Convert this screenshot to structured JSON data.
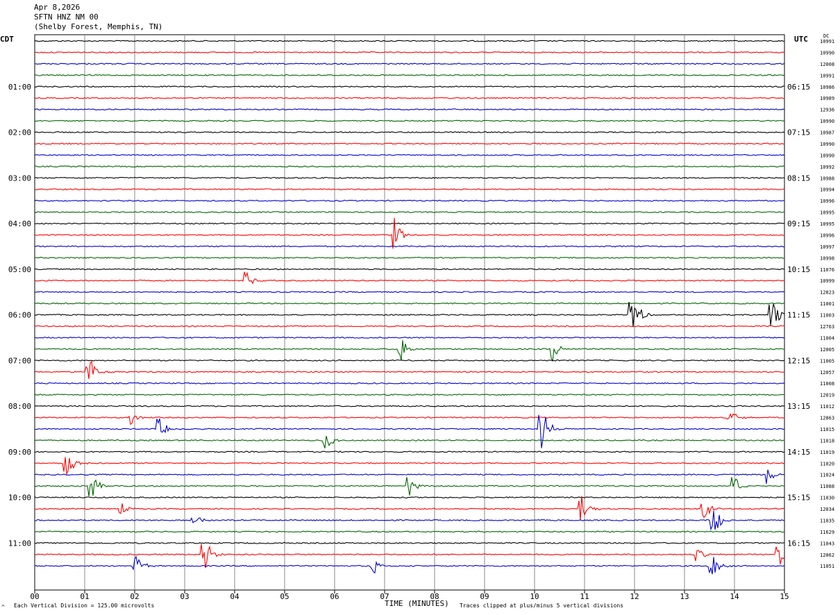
{
  "header": {
    "date": "Apr 8,2026",
    "station": "SFTN HNZ NM 00",
    "location": "(Shelby Forest, Memphis, TN)"
  },
  "left_timezone": "CDT",
  "right_timezone": "UTC",
  "dc_label": "DC",
  "footer": {
    "scale_note": "Each Vertical Division = 125.00 microvolts",
    "clip_note": "Traces clipped at plus/minus 5 vertical divisions",
    "corner_mark": "^"
  },
  "colors": {
    "trace_cycle": [
      "#000000",
      "#ff0000",
      "#0000cc",
      "#006600"
    ],
    "grid": "#888888"
  },
  "chart_data": {
    "type": "seismogram-helicorder",
    "xlabel": "TIME (MINUTES)",
    "x_ticks": [
      "00",
      "01",
      "02",
      "03",
      "04",
      "05",
      "06",
      "07",
      "08",
      "09",
      "10",
      "11",
      "12",
      "13",
      "14",
      "15"
    ],
    "xlim": [
      0,
      15
    ],
    "rows_per_hour": 4,
    "minutes_per_row": 15,
    "left_time_labels": [
      {
        "row": 4,
        "label": "01:00"
      },
      {
        "row": 8,
        "label": "02:00"
      },
      {
        "row": 12,
        "label": "03:00"
      },
      {
        "row": 16,
        "label": "04:00"
      },
      {
        "row": 20,
        "label": "05:00"
      },
      {
        "row": 24,
        "label": "06:00"
      },
      {
        "row": 28,
        "label": "07:00"
      },
      {
        "row": 32,
        "label": "08:00"
      },
      {
        "row": 36,
        "label": "09:00"
      },
      {
        "row": 40,
        "label": "10:00"
      },
      {
        "row": 44,
        "label": "11:00"
      }
    ],
    "right_time_labels": [
      {
        "row": 4,
        "label": "06:15"
      },
      {
        "row": 8,
        "label": "07:15"
      },
      {
        "row": 12,
        "label": "08:15"
      },
      {
        "row": 16,
        "label": "09:15"
      },
      {
        "row": 20,
        "label": "10:15"
      },
      {
        "row": 24,
        "label": "11:15"
      },
      {
        "row": 28,
        "label": "12:15"
      },
      {
        "row": 32,
        "label": "13:15"
      },
      {
        "row": 36,
        "label": "14:15"
      },
      {
        "row": 40,
        "label": "15:15"
      },
      {
        "row": 44,
        "label": "16:15"
      }
    ],
    "dc_values": [
      "10991",
      "10990",
      "12008",
      "10991",
      "10986",
      "10989",
      "12936",
      "10990",
      "10987",
      "10990",
      "10990",
      "10992",
      "10988",
      "10994",
      "10996",
      "10995",
      "10995",
      "10996",
      "10997",
      "10998",
      "11076",
      "10999",
      "12823",
      "11001",
      "11003",
      "12763",
      "11004",
      "12005",
      "11005",
      "12057",
      "11008",
      "12019",
      "11012",
      "12863",
      "11015",
      "11018",
      "11019",
      "11020",
      "11024",
      "11088",
      "11030",
      "12034",
      "11035",
      "11629",
      "11043",
      "12062",
      "11051"
    ],
    "events": [
      {
        "row": 17,
        "minute": 7.2,
        "amp": 25
      },
      {
        "row": 21,
        "minute": 4.25,
        "amp": 12
      },
      {
        "row": 24,
        "minute": 11.95,
        "amp": 40
      },
      {
        "row": 24,
        "minute": 14.75,
        "amp": 30
      },
      {
        "row": 27,
        "minute": 7.35,
        "amp": 18
      },
      {
        "row": 27,
        "minute": 10.4,
        "amp": 18
      },
      {
        "row": 29,
        "minute": 1.1,
        "amp": 22
      },
      {
        "row": 33,
        "minute": 1.95,
        "amp": 10
      },
      {
        "row": 33,
        "minute": 13.9,
        "amp": 18
      },
      {
        "row": 34,
        "minute": 2.5,
        "amp": 16
      },
      {
        "row": 34,
        "minute": 10.15,
        "amp": 35
      },
      {
        "row": 35,
        "minute": 5.85,
        "amp": 12
      },
      {
        "row": 37,
        "minute": 0.65,
        "amp": 22
      },
      {
        "row": 38,
        "minute": 14.7,
        "amp": 14
      },
      {
        "row": 39,
        "minute": 1.15,
        "amp": 18
      },
      {
        "row": 39,
        "minute": 7.5,
        "amp": 14
      },
      {
        "row": 39,
        "minute": 14.0,
        "amp": 14
      },
      {
        "row": 41,
        "minute": 10.95,
        "amp": 22
      },
      {
        "row": 41,
        "minute": 13.4,
        "amp": 14
      },
      {
        "row": 42,
        "minute": 3.2,
        "amp": 10
      },
      {
        "row": 42,
        "minute": 13.6,
        "amp": 22
      },
      {
        "row": 45,
        "minute": 3.4,
        "amp": 28
      },
      {
        "row": 45,
        "minute": 14.9,
        "amp": 18
      },
      {
        "row": 45,
        "minute": 13.25,
        "amp": 10
      },
      {
        "row": 46,
        "minute": 2.05,
        "amp": 16
      },
      {
        "row": 46,
        "minute": 6.8,
        "amp": 10
      },
      {
        "row": 46,
        "minute": 13.55,
        "amp": 22
      },
      {
        "row": 41,
        "minute": 1.75,
        "amp": 8
      }
    ]
  }
}
